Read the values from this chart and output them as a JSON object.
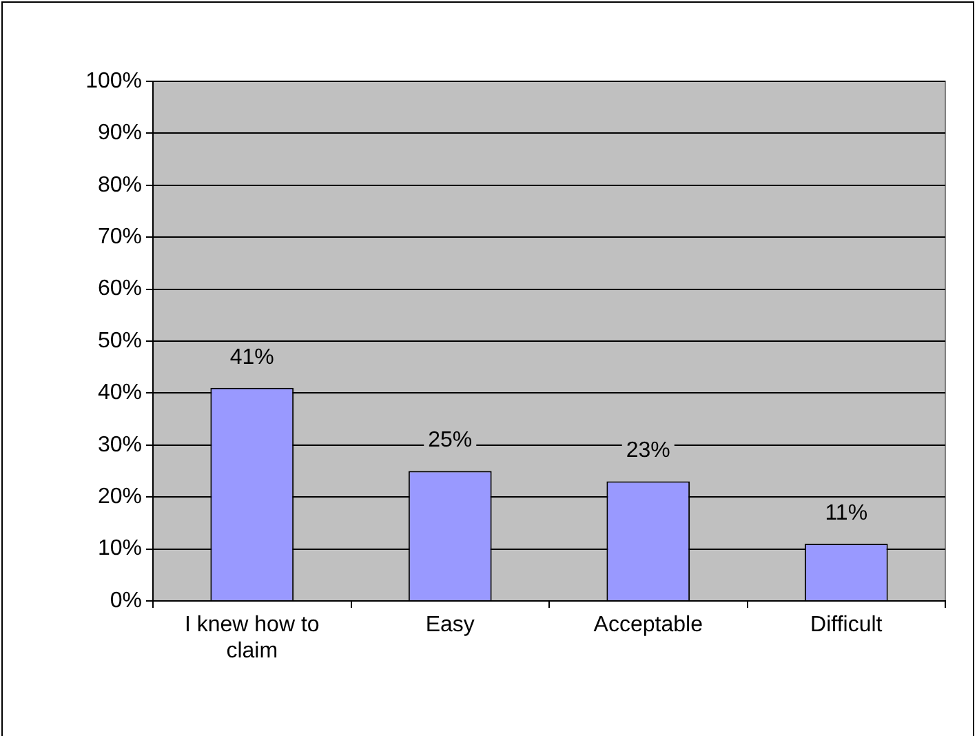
{
  "chart_data": {
    "type": "bar",
    "categories": [
      "I knew how to claim",
      "Easy",
      "Acceptable",
      "Difficult"
    ],
    "values": [
      41,
      25,
      23,
      11
    ],
    "color": "#9999ff",
    "value_labels": [
      "41%",
      "25%",
      "23%",
      "11%"
    ],
    "ylim": [
      0,
      100
    ],
    "yticks": [
      {
        "value": 0,
        "label": "0%"
      },
      {
        "value": 10,
        "label": "10%"
      },
      {
        "value": 20,
        "label": "20%"
      },
      {
        "value": 30,
        "label": "30%"
      },
      {
        "value": 40,
        "label": "40%"
      },
      {
        "value": 50,
        "label": "50%"
      },
      {
        "value": 60,
        "label": "60%"
      },
      {
        "value": 70,
        "label": "70%"
      },
      {
        "value": 80,
        "label": "80%"
      },
      {
        "value": 90,
        "label": "90%"
      },
      {
        "value": 100,
        "label": "100%"
      }
    ],
    "grid": "y",
    "legend": false
  }
}
